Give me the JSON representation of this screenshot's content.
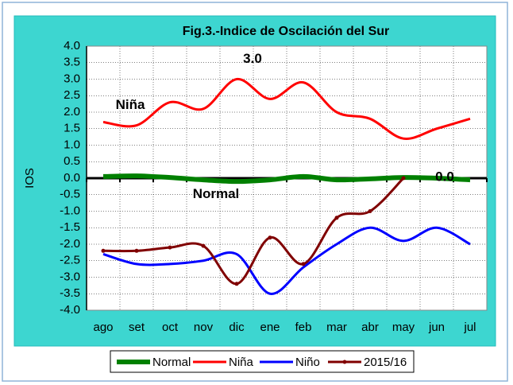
{
  "chart_data": {
    "type": "line",
    "title": "Fig.3.-Indice de Oscilación del Sur",
    "y_label": "IOS",
    "categories": [
      "ago",
      "set",
      "oct",
      "nov",
      "dic",
      "ene",
      "feb",
      "mar",
      "abr",
      "may",
      "jun",
      "jul"
    ],
    "series": [
      {
        "name": "Normal",
        "color": "#008000",
        "width": 6,
        "marker": false,
        "values": [
          0.05,
          0.07,
          0.02,
          -0.05,
          -0.1,
          -0.05,
          0.05,
          -0.05,
          -0.02,
          0.02,
          0.0,
          -0.05
        ]
      },
      {
        "name": "Niña",
        "color": "#ff0000",
        "width": 3,
        "marker": false,
        "values": [
          1.7,
          1.6,
          2.3,
          2.1,
          3.0,
          2.4,
          2.9,
          2.0,
          1.8,
          1.2,
          1.5,
          1.8
        ]
      },
      {
        "name": "Niño",
        "color": "#0000ff",
        "width": 3,
        "marker": false,
        "values": [
          -2.3,
          -2.6,
          -2.6,
          -2.5,
          -2.3,
          -3.5,
          -2.7,
          -2.0,
          -1.5,
          -1.9,
          -1.5,
          -2.0
        ]
      },
      {
        "name": "2015/16",
        "color": "#800000",
        "width": 3,
        "marker": true,
        "values": [
          -2.2,
          -2.2,
          -2.1,
          -2.05,
          -3.2,
          -1.8,
          -2.6,
          -1.2,
          -1.0,
          0.0,
          null,
          null
        ]
      }
    ],
    "annotations": [
      "3.0",
      "Niña",
      "Normal",
      "0.0"
    ],
    "ylim": [
      -4,
      4
    ],
    "yticks": [
      {
        "value": -4,
        "label": "-4.0"
      },
      {
        "value": -3.5,
        "label": "-3.5"
      },
      {
        "value": -3,
        "label": "-3.0"
      },
      {
        "value": -2.5,
        "label": "-2.5"
      },
      {
        "value": -2,
        "label": "-2.0"
      },
      {
        "value": -1.5,
        "label": "-1.5"
      },
      {
        "value": -1,
        "label": "-1.0"
      },
      {
        "value": -0.5,
        "label": "-0.5"
      },
      {
        "value": 0,
        "label": "0.0"
      },
      {
        "value": 0.5,
        "label": "0.5"
      },
      {
        "value": 1,
        "label": "1.0"
      },
      {
        "value": 1.5,
        "label": "1.5"
      },
      {
        "value": 2,
        "label": "2.0"
      },
      {
        "value": 2.5,
        "label": "2.5"
      },
      {
        "value": 3,
        "label": "3.0"
      },
      {
        "value": 3.5,
        "label": "3.5"
      },
      {
        "value": 4,
        "label": "4.0"
      }
    ],
    "grid": true,
    "legend": "bottom"
  }
}
